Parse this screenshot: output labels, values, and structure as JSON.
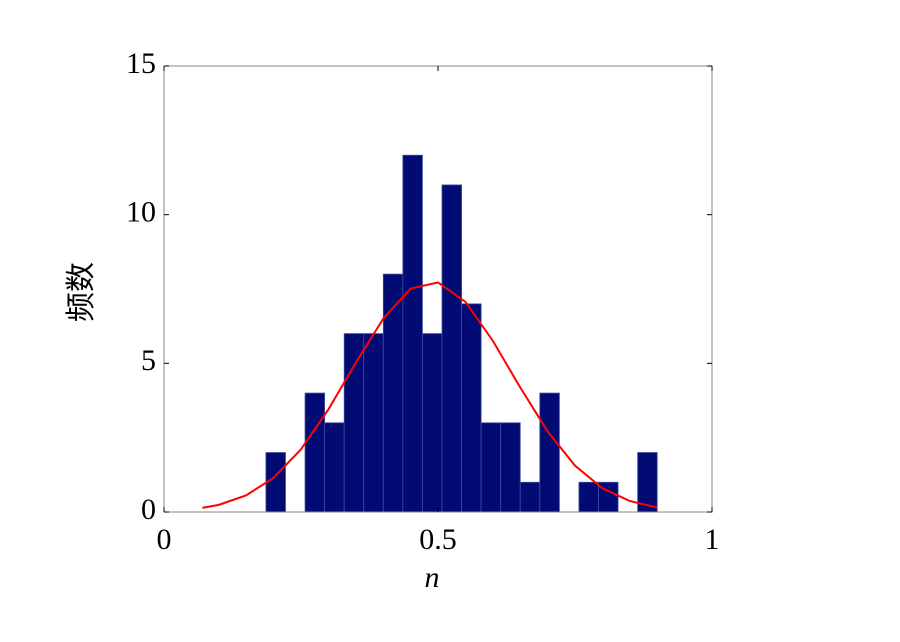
{
  "chart_data": {
    "type": "histogram",
    "xlabel": "n",
    "ylabel": "频数",
    "bins": [
      0.186,
      0.2217,
      0.2574,
      0.2931,
      0.3288,
      0.3645,
      0.4002,
      0.4359,
      0.4716,
      0.5073,
      0.543,
      0.5787,
      0.6144,
      0.6501,
      0.6858,
      0.7215,
      0.7572,
      0.7929,
      0.8286,
      0.8643,
      0.9
    ],
    "values": [
      2,
      0,
      4,
      3,
      6,
      6,
      8,
      12,
      6,
      11,
      7,
      3,
      3,
      1,
      4,
      0,
      1,
      1,
      0,
      2
    ],
    "color": "#020b74",
    "fit": {
      "type": "line",
      "color": "#ff0000",
      "x": [
        0.07,
        0.1,
        0.15,
        0.2,
        0.25,
        0.3,
        0.35,
        0.4,
        0.45,
        0.5,
        0.55,
        0.6,
        0.65,
        0.7,
        0.75,
        0.8,
        0.85,
        0.9
      ],
      "values": [
        0.14,
        0.24,
        0.56,
        1.15,
        2.11,
        3.45,
        5.02,
        6.5,
        7.51,
        7.72,
        7.07,
        5.76,
        4.19,
        2.71,
        1.56,
        0.8,
        0.37,
        0.15
      ]
    },
    "xlim": [
      0,
      1
    ],
    "ylim": [
      0,
      15
    ],
    "xticks": [
      0,
      0.5,
      1
    ],
    "yticks": [
      0,
      5,
      10,
      15
    ]
  }
}
